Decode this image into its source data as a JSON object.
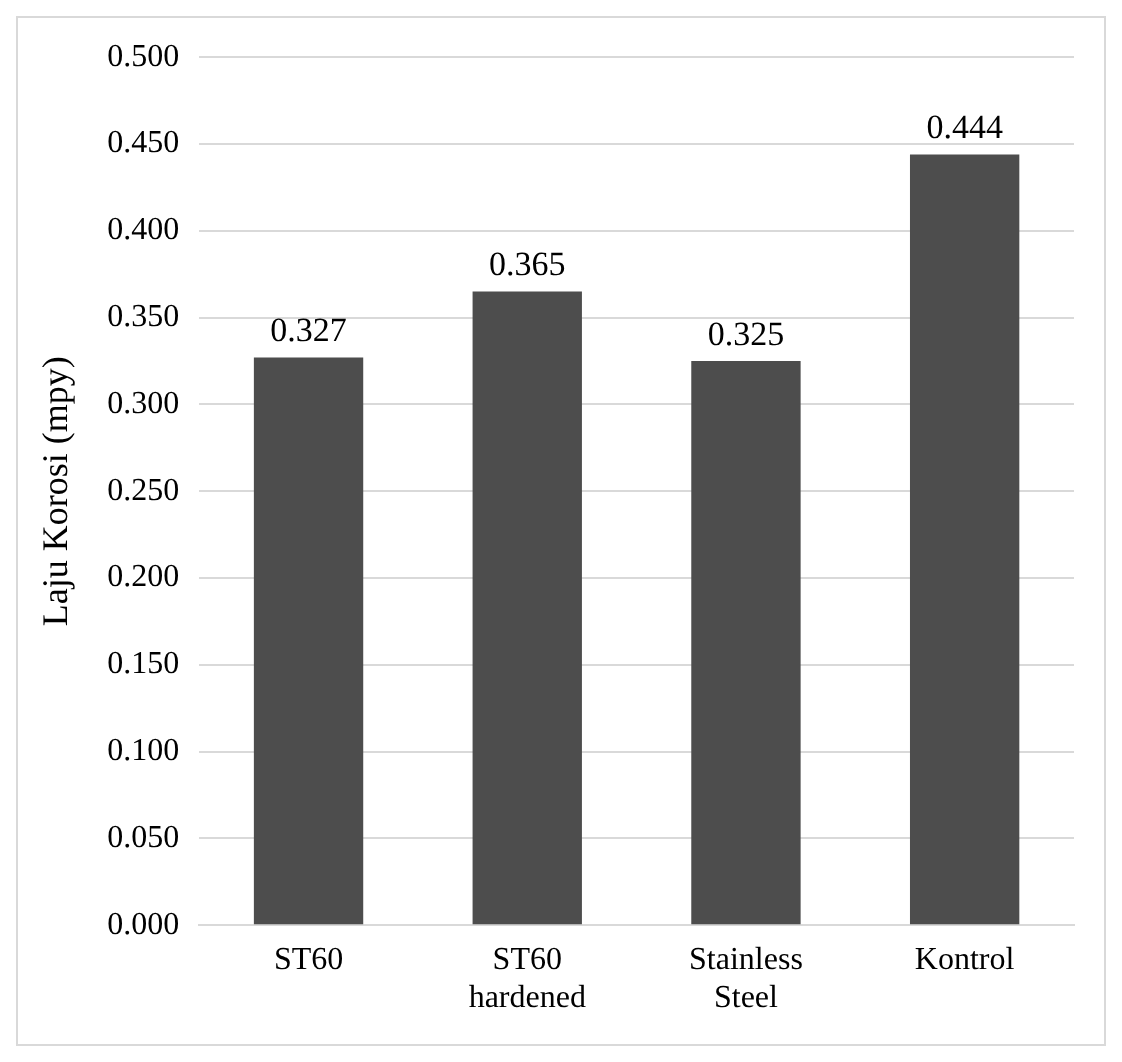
{
  "chart_data": {
    "type": "bar",
    "ylabel": "Laju Korosi (mpy)",
    "categories": [
      "ST60",
      "ST60 hardened",
      "Stainless Steel",
      "Kontrol"
    ],
    "values": [
      0.327,
      0.365,
      0.325,
      0.444
    ],
    "color": "#4d4d4d",
    "ylim": [
      0,
      0.5
    ],
    "yticks": [
      {
        "value": 0,
        "label": "0.000"
      },
      {
        "value": 0.05,
        "label": "0.050"
      },
      {
        "value": 0.1,
        "label": "0.100"
      },
      {
        "value": 0.15,
        "label": "0.150"
      },
      {
        "value": 0.2,
        "label": "0.200"
      },
      {
        "value": 0.25,
        "label": "0.250"
      },
      {
        "value": 0.3,
        "label": "0.300"
      },
      {
        "value": 0.35,
        "label": "0.350"
      },
      {
        "value": 0.4,
        "label": "0.400"
      },
      {
        "value": 0.45,
        "label": "0.450"
      },
      {
        "value": 0.5,
        "label": "0.500"
      }
    ],
    "grid": "y",
    "data_labels": true,
    "legend": false
  }
}
